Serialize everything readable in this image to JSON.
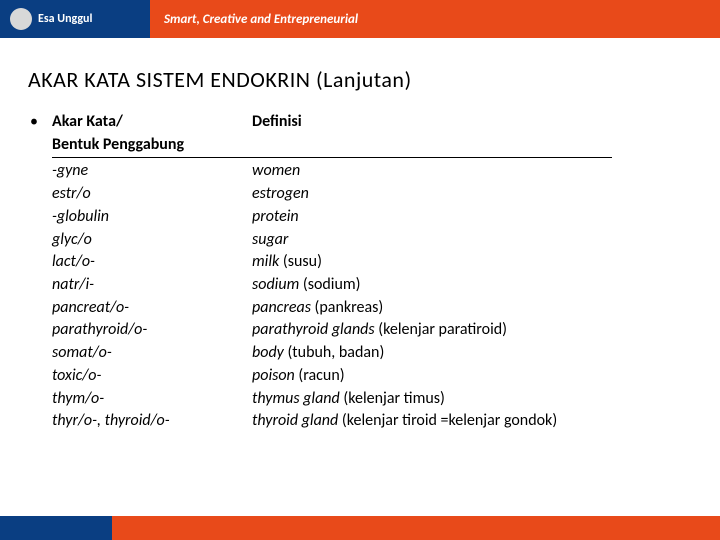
{
  "header": {
    "logo_text": "Esa Unggul",
    "tagline": "Smart, Creative and Entrepreneurial"
  },
  "title": "AKAR  KATA  SISTEM  ENDOKRIN (Lanjutan)",
  "table": {
    "hdr_left_line1": "Akar Kata/",
    "hdr_left_line2": "Bentuk Penggabung",
    "hdr_right": "Definisi",
    "rows": [
      {
        "root": "-gyne",
        "eng": "women",
        "local": ""
      },
      {
        "root": "estr/o",
        "eng": "estrogen",
        "local": ""
      },
      {
        "root": "-globulin",
        "eng": "protein",
        "local": ""
      },
      {
        "root": "glyc/o",
        "eng": "sugar",
        "local": ""
      },
      {
        "root": "lact/o-",
        "eng": "milk",
        "local": " (susu)"
      },
      {
        "root": "natr/i-",
        "eng": "sodium",
        "local": " (sodium)"
      },
      {
        "root": "pancreat/o-",
        "eng": "pancreas",
        "local": " (pankreas)"
      },
      {
        "root": "parathyroid/o-",
        "eng": "parathyroid glands",
        "local": " (kelenjar paratiroid)"
      },
      {
        "root": "somat/o-",
        "eng": "body",
        "local": "  (tubuh, badan)"
      },
      {
        "root": "toxic/o-",
        "eng": "poison",
        "local": " (racun)"
      },
      {
        "root": "thym/o-",
        "eng": "thymus gland",
        "local": " (kelenjar timus)"
      },
      {
        "root": "thyr/o-, thyroid/o-",
        "eng": "thyroid gland",
        "local": " (kelenjar tiroid =kelenjar gondok)"
      }
    ]
  }
}
